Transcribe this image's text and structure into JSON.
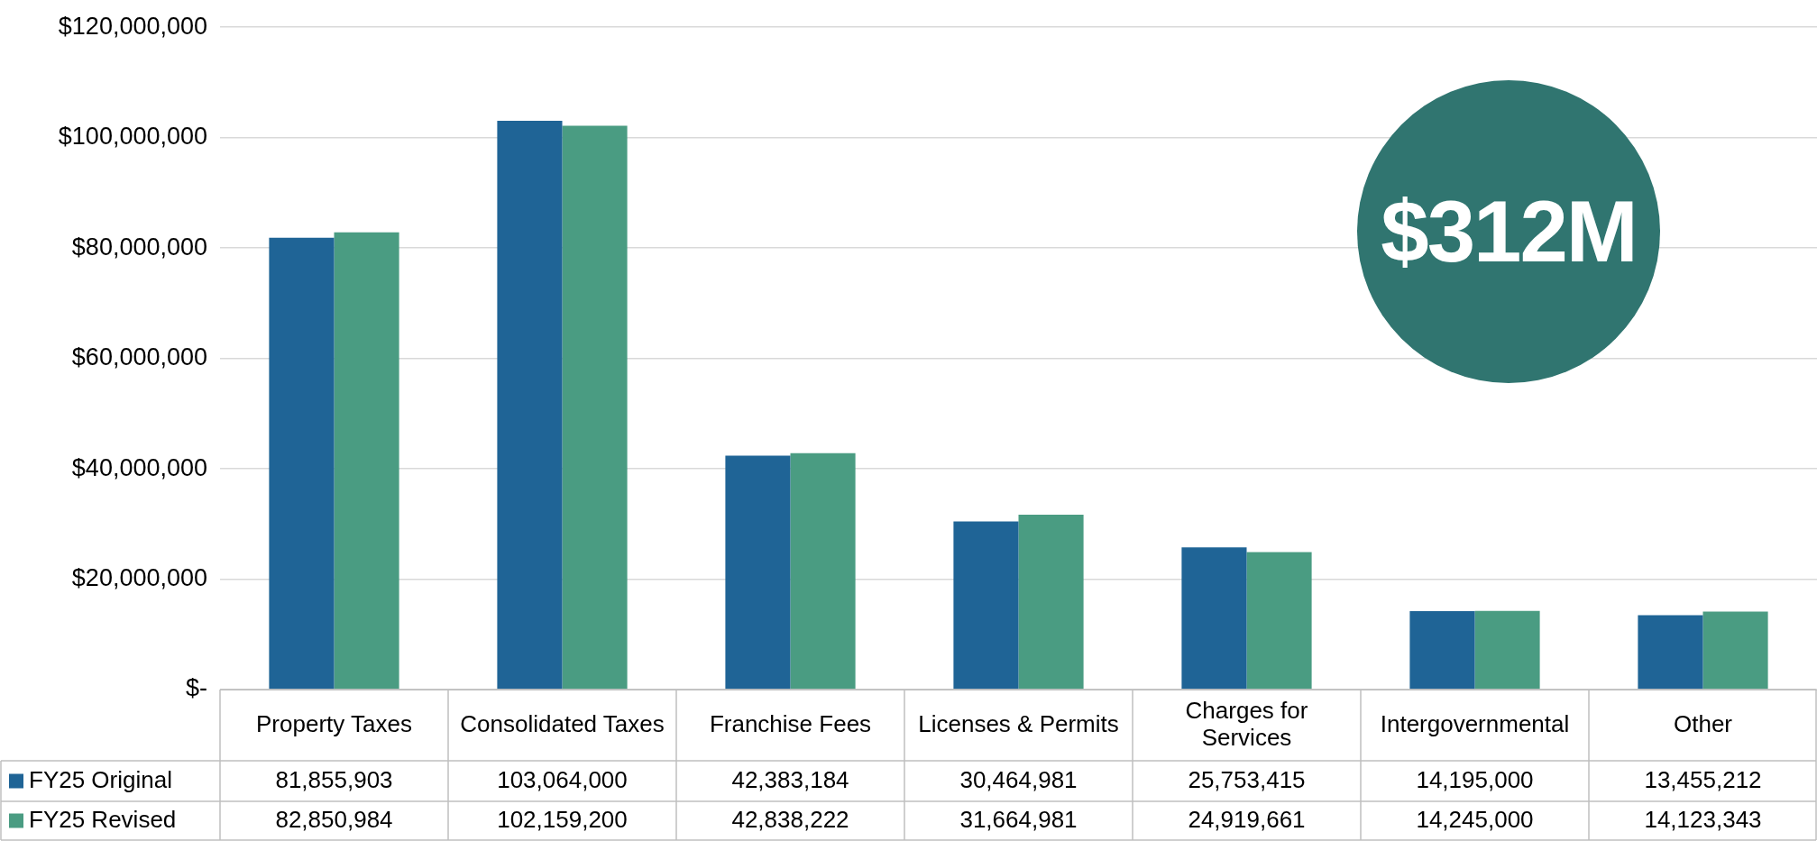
{
  "chart_data": {
    "type": "bar",
    "categories": [
      "Property Taxes",
      "Consolidated Taxes",
      "Franchise Fees",
      "Licenses & Permits",
      "Charges for Services",
      "Intergovernmental",
      "Other"
    ],
    "series": [
      {
        "name": "FY25 Original",
        "color": "#1f6496",
        "values": [
          81855903,
          103064000,
          42383184,
          30464981,
          25753415,
          14195000,
          13455212
        ],
        "value_labels": [
          "81,855,903",
          "103,064,000",
          "42,383,184",
          "30,464,981",
          "25,753,415",
          "14,195,000",
          "13,455,212"
        ]
      },
      {
        "name": "FY25 Revised",
        "color": "#4a9c82",
        "values": [
          82850984,
          102159200,
          42838222,
          31664981,
          24919661,
          14245000,
          14123343
        ],
        "value_labels": [
          "82,850,984",
          "102,159,200",
          "42,838,222",
          "31,664,981",
          "24,919,661",
          "14,245,000",
          "14,123,343"
        ]
      }
    ],
    "ylim": [
      0,
      120000000
    ],
    "yticks": [
      {
        "value": 0,
        "label": "$-"
      },
      {
        "value": 20000000,
        "label": "$20,000,000"
      },
      {
        "value": 40000000,
        "label": "$40,000,000"
      },
      {
        "value": 60000000,
        "label": "$60,000,000"
      },
      {
        "value": 80000000,
        "label": "$80,000,000"
      },
      {
        "value": 100000000,
        "label": "$100,000,000"
      },
      {
        "value": 120000000,
        "label": "$120,000,000"
      }
    ],
    "grid": "y",
    "legend": "bottom",
    "annotations": [
      "$312M"
    ]
  }
}
